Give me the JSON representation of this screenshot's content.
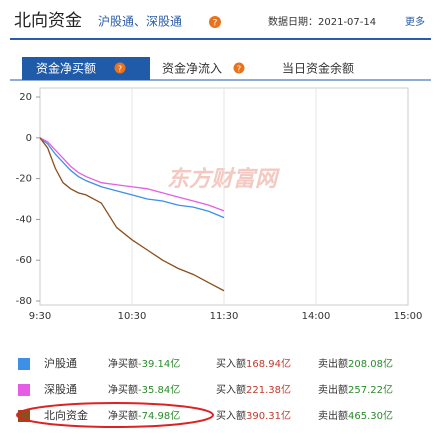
{
  "header": {
    "title": "北向资金",
    "subtitle": "沪股通、深股通",
    "help": "?",
    "date_label": "数据日期：2021-07-14",
    "more": "更多"
  },
  "tabs": [
    {
      "label": "资金净买额",
      "help": "?"
    },
    {
      "label": "资金净流入",
      "help": "?"
    },
    {
      "label": "当日资金余额"
    }
  ],
  "watermark": "东方财富网",
  "chart_data": {
    "type": "line",
    "x": [
      0,
      5,
      10,
      15,
      20,
      25,
      30,
      40,
      50,
      60,
      70,
      80,
      90,
      100,
      110,
      120
    ],
    "xlim": [
      0,
      240
    ],
    "xticks": [
      {
        "value": 0,
        "label": "9:30"
      },
      {
        "value": 60,
        "label": "10:30"
      },
      {
        "value": 120,
        "label": "11:30"
      },
      {
        "value": 180,
        "label": "14:00"
      },
      {
        "value": 240,
        "label": "15:00"
      }
    ],
    "ylim": [
      -80,
      20
    ],
    "yticks": [
      20,
      0,
      -20,
      -40,
      -60,
      -80
    ],
    "grid": true,
    "series": [
      {
        "name": "沪股通",
        "color": "#3d8fe8",
        "values": [
          0,
          -3,
          -8,
          -12,
          -16,
          -19,
          -21,
          -24,
          -26,
          -28,
          -30,
          -31,
          -33,
          -34,
          -36,
          -39.14
        ]
      },
      {
        "name": "深股通",
        "color": "#e45de4",
        "values": [
          0,
          -2,
          -6,
          -10,
          -14,
          -17,
          -19,
          -22,
          -23,
          -24,
          -25,
          -27,
          -29,
          -31,
          -33,
          -35.84
        ]
      },
      {
        "name": "北向资金",
        "color": "#8b4f1e",
        "values": [
          0,
          -5,
          -15,
          -22,
          -25,
          -27,
          -28,
          -32,
          -44,
          -50,
          -55,
          -60,
          -64,
          -67,
          -71,
          -74.98
        ]
      }
    ]
  },
  "legend": {
    "labels": [
      "净买额",
      "买入额",
      "卖出额"
    ],
    "rows": [
      [
        "-39.14亿",
        "168.94亿",
        "208.08亿"
      ],
      [
        "-35.84亿",
        "221.38亿",
        "257.22亿"
      ],
      [
        "-74.98亿",
        "390.31亿",
        "465.30亿"
      ]
    ]
  }
}
